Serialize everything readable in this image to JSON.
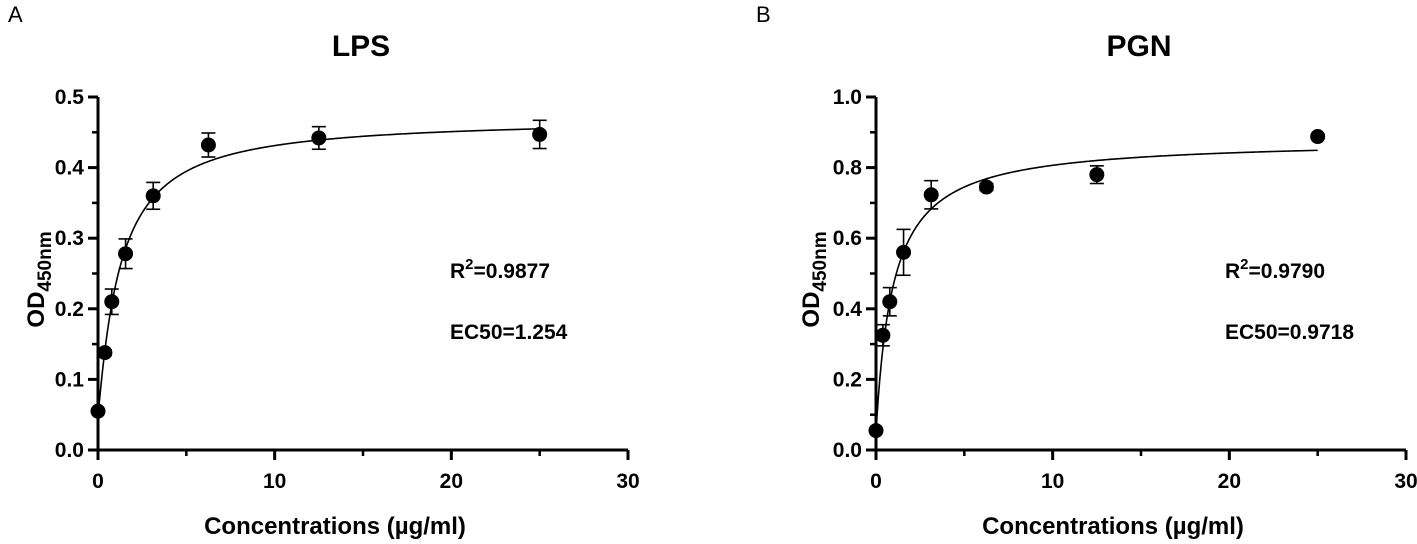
{
  "panels": [
    {
      "letter": "A",
      "annotations": {
        "r2_prefix": "R",
        "r2_sup": "2",
        "r2_value": "=0.9877",
        "ec50": "EC50=1.254"
      }
    },
    {
      "letter": "B",
      "annotations": {
        "r2_prefix": "R",
        "r2_sup": "2",
        "r2_value": "=0.9790",
        "ec50": "EC50=0.9718"
      }
    }
  ],
  "chart_data": [
    {
      "type": "scatter",
      "title": "LPS",
      "xlabel": "Concentrations (µg/ml)",
      "ylabel_main": "OD",
      "ylabel_sub": "450nm",
      "xlim": [
        0,
        30
      ],
      "ylim": [
        0,
        0.5
      ],
      "xticks": [
        0,
        10,
        20,
        30
      ],
      "yticks": [
        0.0,
        0.1,
        0.2,
        0.3,
        0.4,
        0.5
      ],
      "ytick_labels": [
        "0.0",
        "0.1",
        "0.2",
        "0.3",
        "0.4",
        "0.5"
      ],
      "grid": false,
      "points": [
        {
          "x": 0,
          "y": 0.055,
          "err": 0.003
        },
        {
          "x": 0.39,
          "y": 0.138,
          "err": 0.004
        },
        {
          "x": 0.78,
          "y": 0.21,
          "err": 0.018
        },
        {
          "x": 1.56,
          "y": 0.278,
          "err": 0.021
        },
        {
          "x": 3.125,
          "y": 0.36,
          "err": 0.019
        },
        {
          "x": 6.25,
          "y": 0.432,
          "err": 0.017
        },
        {
          "x": 12.5,
          "y": 0.442,
          "err": 0.016
        },
        {
          "x": 25,
          "y": 0.447,
          "err": 0.02
        }
      ],
      "fit": {
        "bottom": 0.05,
        "top": 0.47,
        "ec50": 1.254,
        "hill": 1.1,
        "x_end": 25
      }
    },
    {
      "type": "scatter",
      "title": "PGN",
      "xlabel": "Concentrations (µg/ml)",
      "ylabel_main": "OD",
      "ylabel_sub": "450nm",
      "xlim": [
        0,
        30
      ],
      "ylim": [
        0,
        1.0
      ],
      "xticks": [
        0,
        10,
        20,
        30
      ],
      "yticks": [
        0.0,
        0.2,
        0.4,
        0.6,
        0.8,
        1.0
      ],
      "ytick_labels": [
        "0.0",
        "0.2",
        "0.4",
        "0.6",
        "0.8",
        "1.0"
      ],
      "grid": false,
      "points": [
        {
          "x": 0,
          "y": 0.055,
          "err": 0.003
        },
        {
          "x": 0.39,
          "y": 0.325,
          "err": 0.03
        },
        {
          "x": 0.78,
          "y": 0.42,
          "err": 0.04
        },
        {
          "x": 1.56,
          "y": 0.56,
          "err": 0.065
        },
        {
          "x": 3.125,
          "y": 0.723,
          "err": 0.04
        },
        {
          "x": 6.25,
          "y": 0.745,
          "err": 0.01
        },
        {
          "x": 12.5,
          "y": 0.78,
          "err": 0.025
        },
        {
          "x": 25,
          "y": 0.888,
          "err": 0.005
        }
      ],
      "fit": {
        "bottom": 0.05,
        "top": 0.88,
        "ec50": 0.9718,
        "hill": 1.0,
        "x_end": 25
      }
    }
  ]
}
